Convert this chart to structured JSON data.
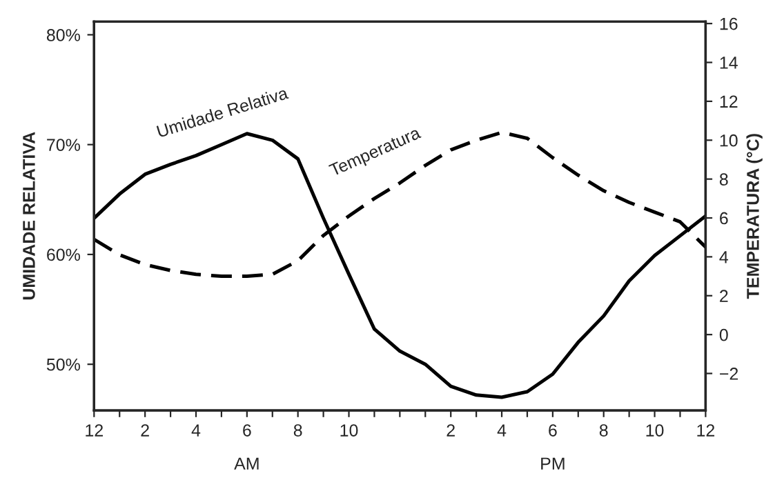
{
  "chart_data": {
    "type": "line",
    "ylabel": "UMIDADE RELATIVA",
    "y2label": "TEMPERATURA (°C)",
    "categories": [
      "12",
      null,
      "2",
      null,
      "4",
      null,
      "6",
      null,
      "8",
      null,
      "10",
      null,
      null,
      null,
      "2",
      null,
      "4",
      null,
      "6",
      null,
      "8",
      null,
      "10",
      null,
      "12"
    ],
    "series": [
      {
        "name": "Umidade Relativa",
        "color": "#000000",
        "line_style": "solid",
        "values": [
          63.3,
          65.5,
          67.3,
          68.2,
          69,
          70,
          71,
          70.4,
          68.7,
          63.3,
          58.2,
          53.2,
          51.2,
          50,
          48,
          47.2,
          47,
          47.5,
          49.1,
          52,
          54.4,
          57.6,
          59.9,
          61.7,
          63.5
        ]
      },
      {
        "name": "Temperatura",
        "color": "#000000",
        "line_style": "dashed",
        "axis": "y2",
        "values": [
          4.9,
          4.1,
          3.6,
          3.3,
          3.1,
          3.0,
          3.0,
          3.1,
          3.8,
          5.1,
          6.1,
          7.0,
          7.8,
          8.7,
          9.5,
          10.0,
          10.4,
          10.1,
          9.1,
          8.2,
          7.4,
          6.8,
          6.3,
          5.8,
          4.5
        ]
      }
    ],
    "ylim": [
      45.8,
      81.2
    ],
    "yticks": [
      {
        "value": 50,
        "label": "50%"
      },
      {
        "value": 60,
        "label": "60%"
      },
      {
        "value": 70,
        "label": "70%"
      },
      {
        "value": 80,
        "label": "80%"
      }
    ],
    "y2lim": [
      -3.9,
      16.1
    ],
    "y2ticks": [
      {
        "value": -2,
        "label": "−2"
      },
      0,
      2,
      4,
      6,
      8,
      10,
      12,
      14,
      16
    ],
    "annotations": [
      "AM",
      "PM"
    ],
    "grid": false,
    "legend": false
  }
}
